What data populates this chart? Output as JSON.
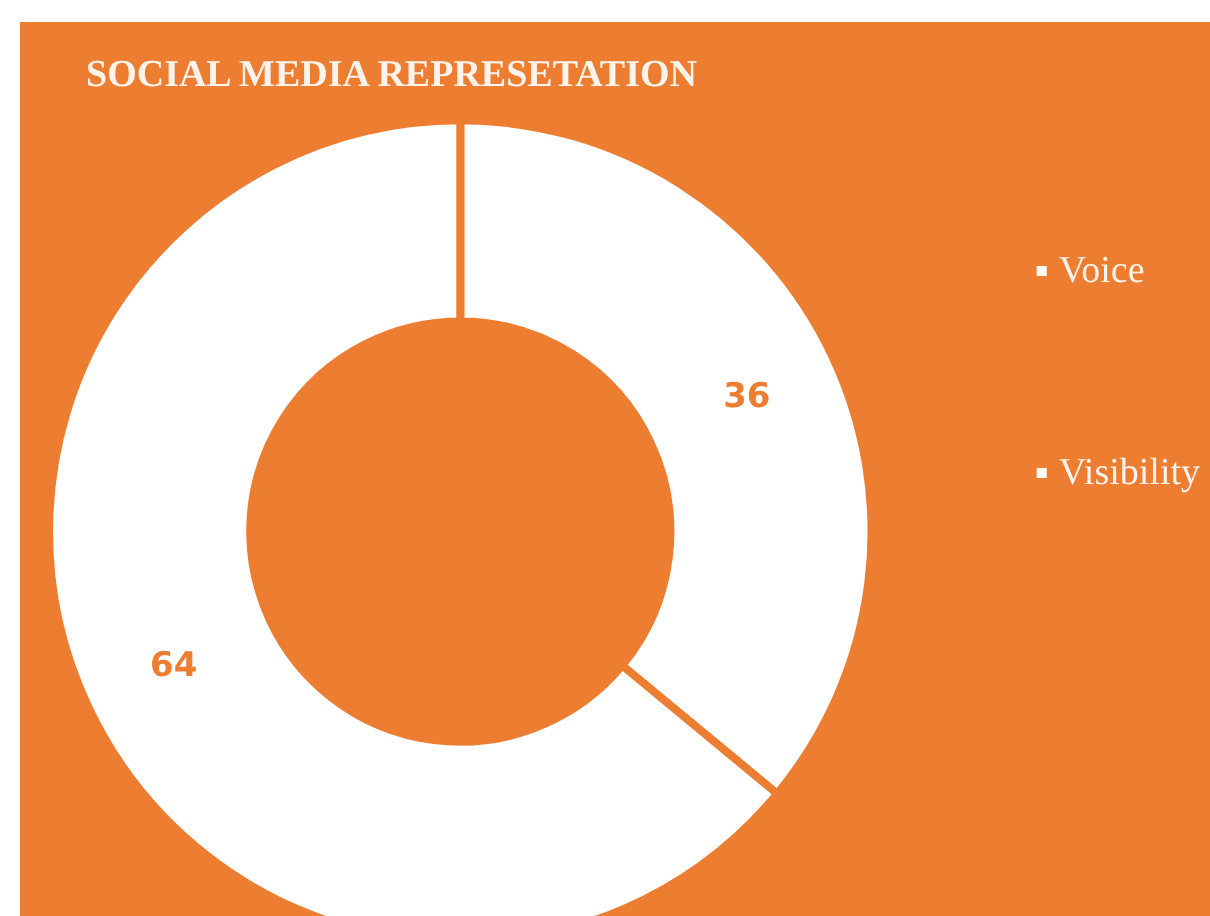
{
  "chart_data": {
    "type": "donut",
    "title": "SOCIAL MEDIA REPRESETATION",
    "categories": [
      "Voice",
      "Visibility"
    ],
    "values": [
      36,
      64
    ],
    "colors": [
      "#ffffff",
      "#ffffff"
    ],
    "data_labels": true,
    "legend": "right"
  }
}
